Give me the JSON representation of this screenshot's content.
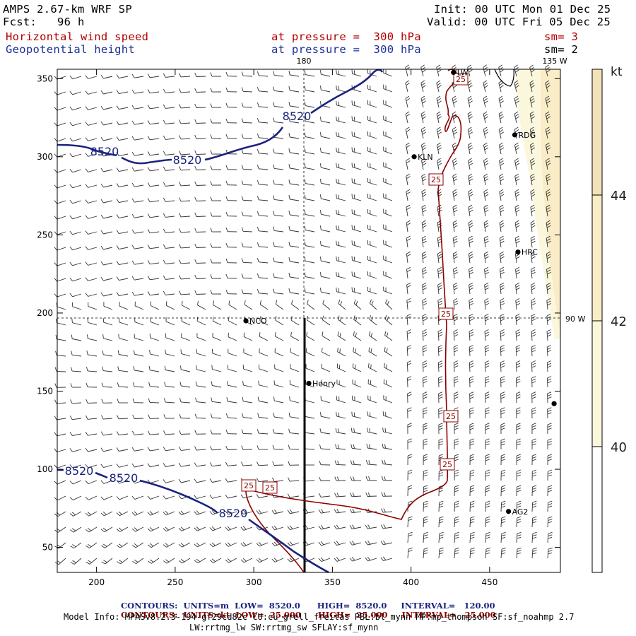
{
  "header": {
    "model": "AMPS 2.67-km WRF SP",
    "fcst": "Fcst:   96 h",
    "init": "Init: 00 UTC Mon 01 Dec 25",
    "valid": "Valid: 00 UTC Fri 05 Dec 25",
    "field1": "Horizontal wind speed",
    "field2": "Geopotential height",
    "pressure1": "at pressure =  300 hPa",
    "pressure2": "at pressure =  300 hPa",
    "sm1": "sm= 3",
    "sm2": "sm= 2"
  },
  "chart_data": {
    "type": "contour",
    "xlim": [
      175,
      495
    ],
    "ylim": [
      34,
      356
    ],
    "x_ticks": [
      200,
      250,
      300,
      350,
      400,
      450
    ],
    "y_ticks": [
      50,
      100,
      150,
      200,
      250,
      300,
      350
    ],
    "meridian_labels": {
      "top": "180",
      "top_right": "135 W",
      "right": "90 W"
    },
    "colorbar": {
      "unit": "kt",
      "ticks": [
        40,
        42,
        44
      ],
      "colors": [
        "#fefefe",
        "#fbf7dd",
        "#f9ecc6",
        "#f3e2b9"
      ]
    },
    "contours": {
      "height": {
        "units": "m",
        "low": "8520.0",
        "high": "8520.0",
        "interval": "120.00",
        "color": "#1a237e"
      },
      "wind": {
        "units": "kt",
        "low": "25.000",
        "high": "25.000",
        "interval": "25.000",
        "color": "#8b0000"
      }
    },
    "height_contour_labels": [
      "8520",
      "8520",
      "8520",
      "8520",
      "8520",
      "8520"
    ],
    "wind_contour_labels": [
      "25",
      "25",
      "25",
      "25",
      "25",
      "25",
      "25"
    ],
    "stations": [
      {
        "name": "NCO",
        "x": 295,
        "y": 195
      },
      {
        "name": "Henry",
        "x": 335,
        "y": 155
      },
      {
        "name": "KLN",
        "x": 402,
        "y": 300
      },
      {
        "name": "RDG",
        "x": 466,
        "y": 314
      },
      {
        "name": "HRC",
        "x": 468,
        "y": 239
      },
      {
        "name": "AG2",
        "x": 462,
        "y": 73
      },
      {
        "name": "LW",
        "x": 427,
        "y": 354
      },
      {
        "name": "",
        "x": 491,
        "y": 142
      }
    ]
  },
  "footer": {
    "contours_label": "CONTOURS:",
    "units_m": "UNITS=m",
    "units_kt": "UNITS=kt",
    "low_label": "LOW=",
    "high_label": "HIGH=",
    "interval_label": "INTERVAL=",
    "model_info": "Model Info: MPASv8.2.3-194-gf29cd82c CU:cu_grell_freitas PBL:bl_mynn MP:mp_thompson SF:sf_noahmp 2.7",
    "model_info2": "LW:rrtmg_lw SW:rrtmg_sw SFLAY:sf_mynn"
  }
}
